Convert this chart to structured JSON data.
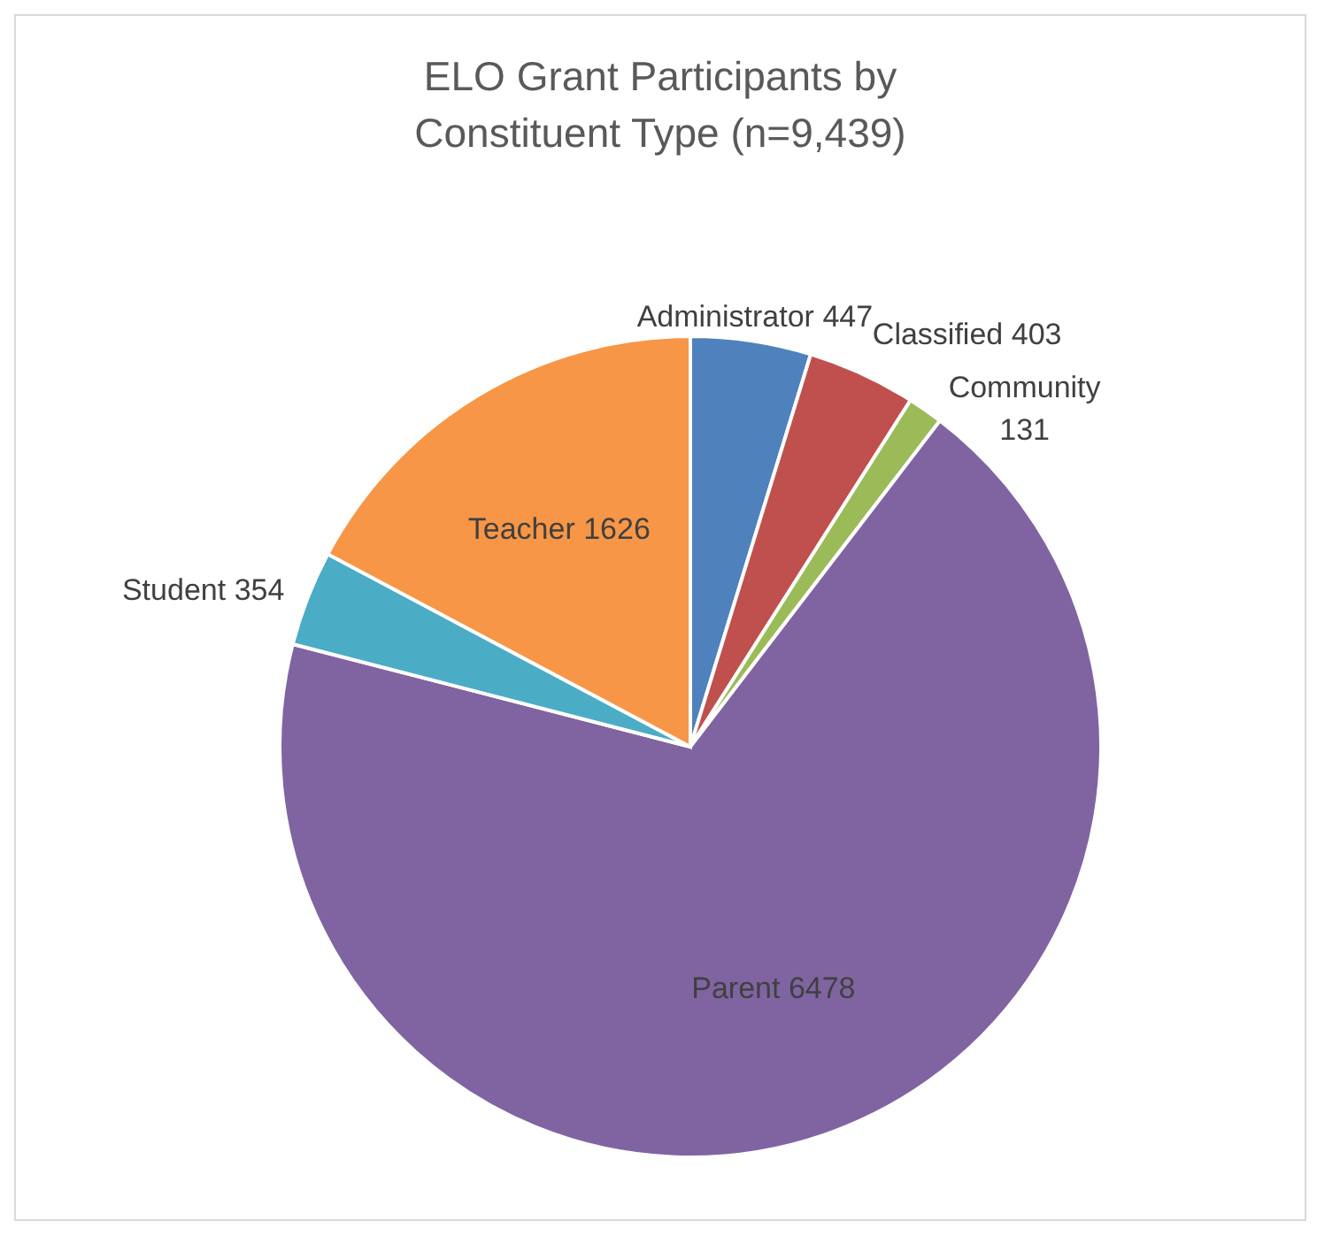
{
  "chart_data": {
    "type": "pie",
    "title": "ELO Grant Participants by Constituent Type (n=9,439)",
    "categories": [
      "Administrator",
      "Classified",
      "Community",
      "Parent",
      "Student",
      "Teacher"
    ],
    "values": [
      447,
      403,
      131,
      6478,
      354,
      1626
    ],
    "colors": [
      "#4f81bd",
      "#c0504d",
      "#9bbb59",
      "#8064a2",
      "#4bacc6",
      "#f79646"
    ],
    "data_labels": true,
    "legend": false
  }
}
